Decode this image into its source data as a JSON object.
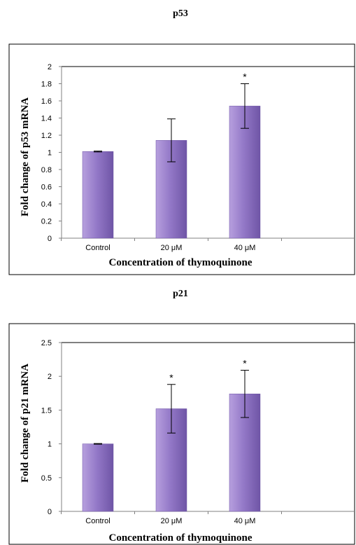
{
  "colors": {
    "bar_light": "#b7a0de",
    "bar_mid": "#9479c8",
    "bar_dark": "#6f55a6",
    "axis": "#808080",
    "frame": "#000000",
    "error": "#000000"
  },
  "chart_data": [
    {
      "type": "bar",
      "title": "p53",
      "xlabel": "Concentration of thymoquinone",
      "ylabel": "Fold change of p53 mRNA",
      "categories": [
        "Control",
        "20 μM",
        "40 μM"
      ],
      "values": [
        1.01,
        1.14,
        1.54
      ],
      "error": [
        0.005,
        0.25,
        0.26
      ],
      "significance": [
        "",
        "",
        "*"
      ],
      "ylim": [
        0,
        2
      ],
      "yticks": [
        0,
        0.2,
        0.4,
        0.6,
        0.8,
        1,
        1.2,
        1.4,
        1.6,
        1.8,
        2
      ],
      "ytick_labels": [
        "0",
        "0.2",
        "0.4",
        "0.6",
        "0.8",
        "1",
        "1.2",
        "1.4",
        "1.6",
        "1.8",
        "2"
      ],
      "grid": false,
      "legend": "none"
    },
    {
      "type": "bar",
      "title": "p21",
      "xlabel": "Concentration of thymoquinone",
      "ylabel": "Fold change of p21 mRNA",
      "categories": [
        "Control",
        "20 μM",
        "40 μM"
      ],
      "values": [
        1.0,
        1.52,
        1.74
      ],
      "error": [
        0.005,
        0.36,
        0.35
      ],
      "significance": [
        "",
        "*",
        "*"
      ],
      "ylim": [
        0,
        2.5
      ],
      "yticks": [
        0,
        0.5,
        1,
        1.5,
        2,
        2.5
      ],
      "ytick_labels": [
        "0",
        "0.5",
        "1",
        "1.5",
        "2",
        "2.5"
      ],
      "grid": false,
      "legend": "none"
    }
  ]
}
